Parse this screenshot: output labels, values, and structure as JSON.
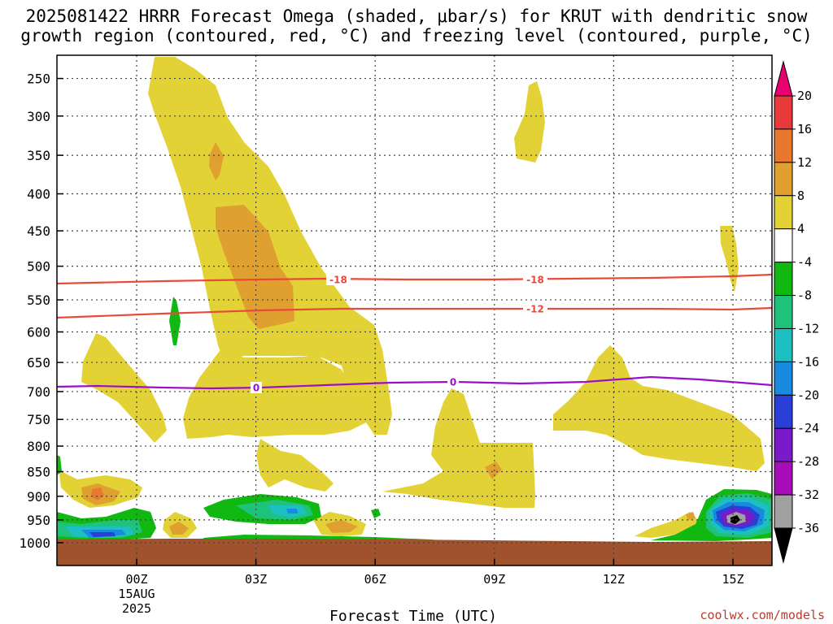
{
  "title_line1": "2025081422 HRRR Forecast Omega (shaded, μbar/s) for KRUT with dendritic snow",
  "title_line2": "growth region (contoured, red, °C) and freezing level (contoured, purple, °C)",
  "x_axis_title": "Forecast Time (UTC)",
  "credit": "coolwx.com/models",
  "chart_data": {
    "type": "contour",
    "title": "2025081422 HRRR Forecast Omega (shaded, μbar/s) for KRUT with dendritic snow growth region (contoured, red, °C) and freezing level (contoured, purple, °C)",
    "xlabel": "Forecast Time (UTC)",
    "ylabel": "",
    "x_ticks": [
      "00Z",
      "03Z",
      "06Z",
      "09Z",
      "12Z",
      "15Z"
    ],
    "x_tick_date": [
      "15AUG",
      "2025"
    ],
    "y_ticks": [
      250,
      300,
      350,
      400,
      450,
      500,
      550,
      600,
      650,
      700,
      750,
      800,
      850,
      900,
      950,
      1000
    ],
    "y_axis": "pressure (hPa), reversed log",
    "colorbar": {
      "levels": [
        "20",
        "16",
        "12",
        "8",
        "4",
        "-4",
        "-8",
        "-12",
        "-16",
        "-20",
        "-24",
        "-28",
        "-32",
        "-36"
      ],
      "colors": [
        "#e8006e",
        "#e83a3a",
        "#e8782e",
        "#e0a030",
        "#e2d236",
        "#ffffff",
        "#12b812",
        "#1ec27a",
        "#1cc0c0",
        "#1a8ae0",
        "#2a3ed8",
        "#7a1ac8",
        "#a80cb8",
        "#a0a0a0",
        "#000000"
      ]
    },
    "contours": [
      {
        "name": "-18",
        "color": "#e84a3a",
        "kind": "temperature"
      },
      {
        "name": "-12",
        "color": "#e84a3a",
        "kind": "temperature"
      },
      {
        "name": "0",
        "color": "#9a10c8",
        "kind": "freezing level"
      }
    ],
    "grid": true
  }
}
